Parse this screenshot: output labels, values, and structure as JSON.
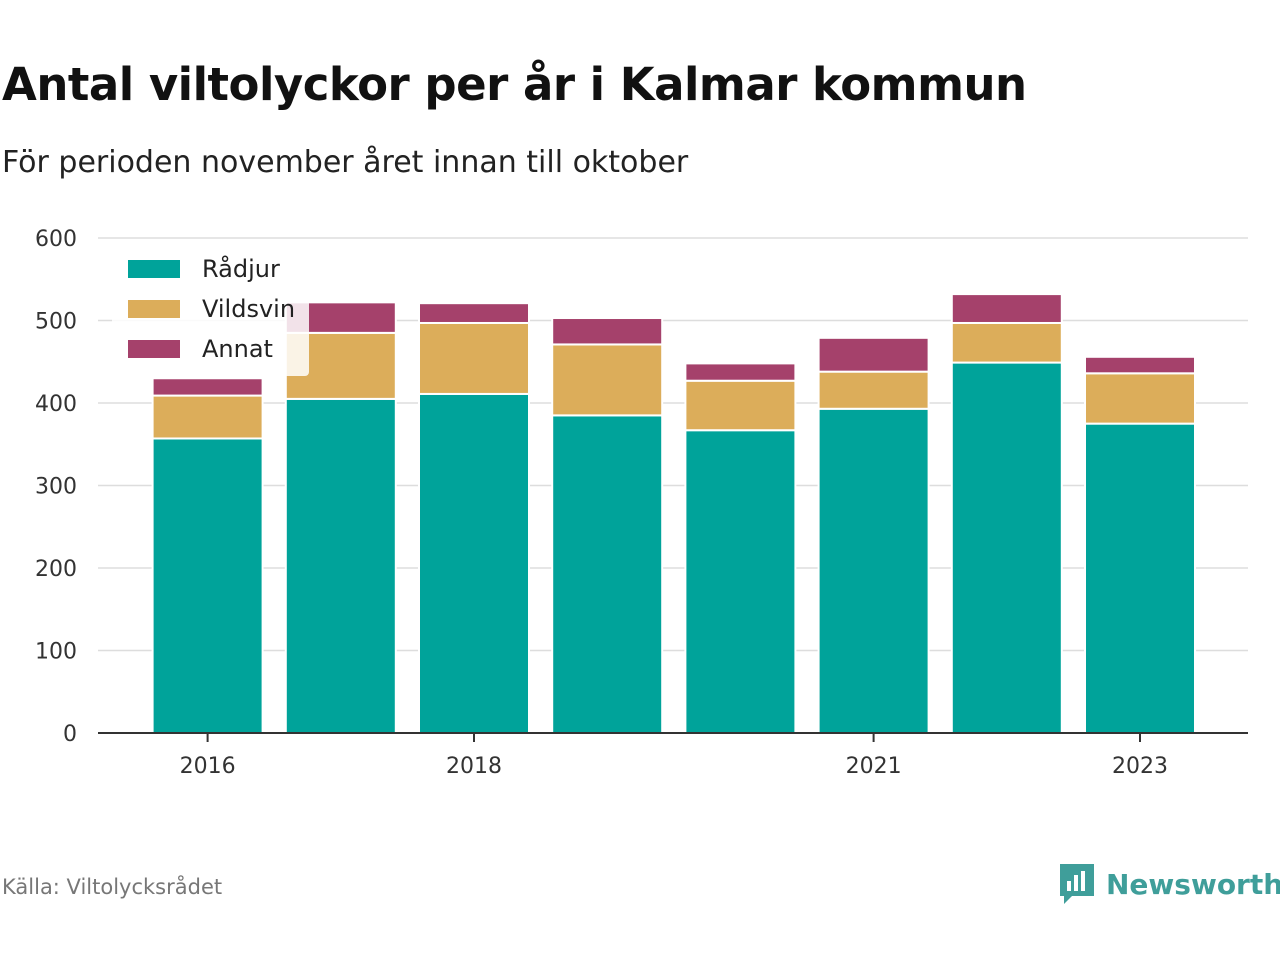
{
  "title": "Antal viltolyckor per år i Kalmar kommun",
  "subtitle": "För perioden november året innan till oktober",
  "source": "Källa: Viltolycksrådet",
  "brand": {
    "name": "Newsworthy",
    "icon": "newsworthy-logo-icon",
    "color": "#3f9e9a"
  },
  "chart_data": {
    "type": "bar",
    "stacked": true,
    "categories": [
      "2016",
      "2017",
      "2018",
      "2019",
      "2020",
      "2021",
      "2022",
      "2023"
    ],
    "tick_labels": [
      "2016",
      "",
      "2018",
      "",
      "",
      "2021",
      "",
      "2023"
    ],
    "series": [
      {
        "name": "Rådjur",
        "color": "#00a39a",
        "values": [
          357,
          405,
          411,
          385,
          367,
          393,
          449,
          375
        ]
      },
      {
        "name": "Vildsvin",
        "color": "#dcad5a",
        "values": [
          52,
          80,
          86,
          86,
          60,
          45,
          48,
          61
        ]
      },
      {
        "name": "Annat",
        "color": "#a5416b",
        "values": [
          21,
          37,
          24,
          32,
          21,
          41,
          35,
          20
        ]
      }
    ],
    "ylim": [
      0,
      600
    ],
    "yticks": [
      0,
      100,
      200,
      300,
      400,
      500,
      600
    ],
    "grid": true,
    "legend_position": "top-left",
    "xlabel": "",
    "ylabel": ""
  }
}
